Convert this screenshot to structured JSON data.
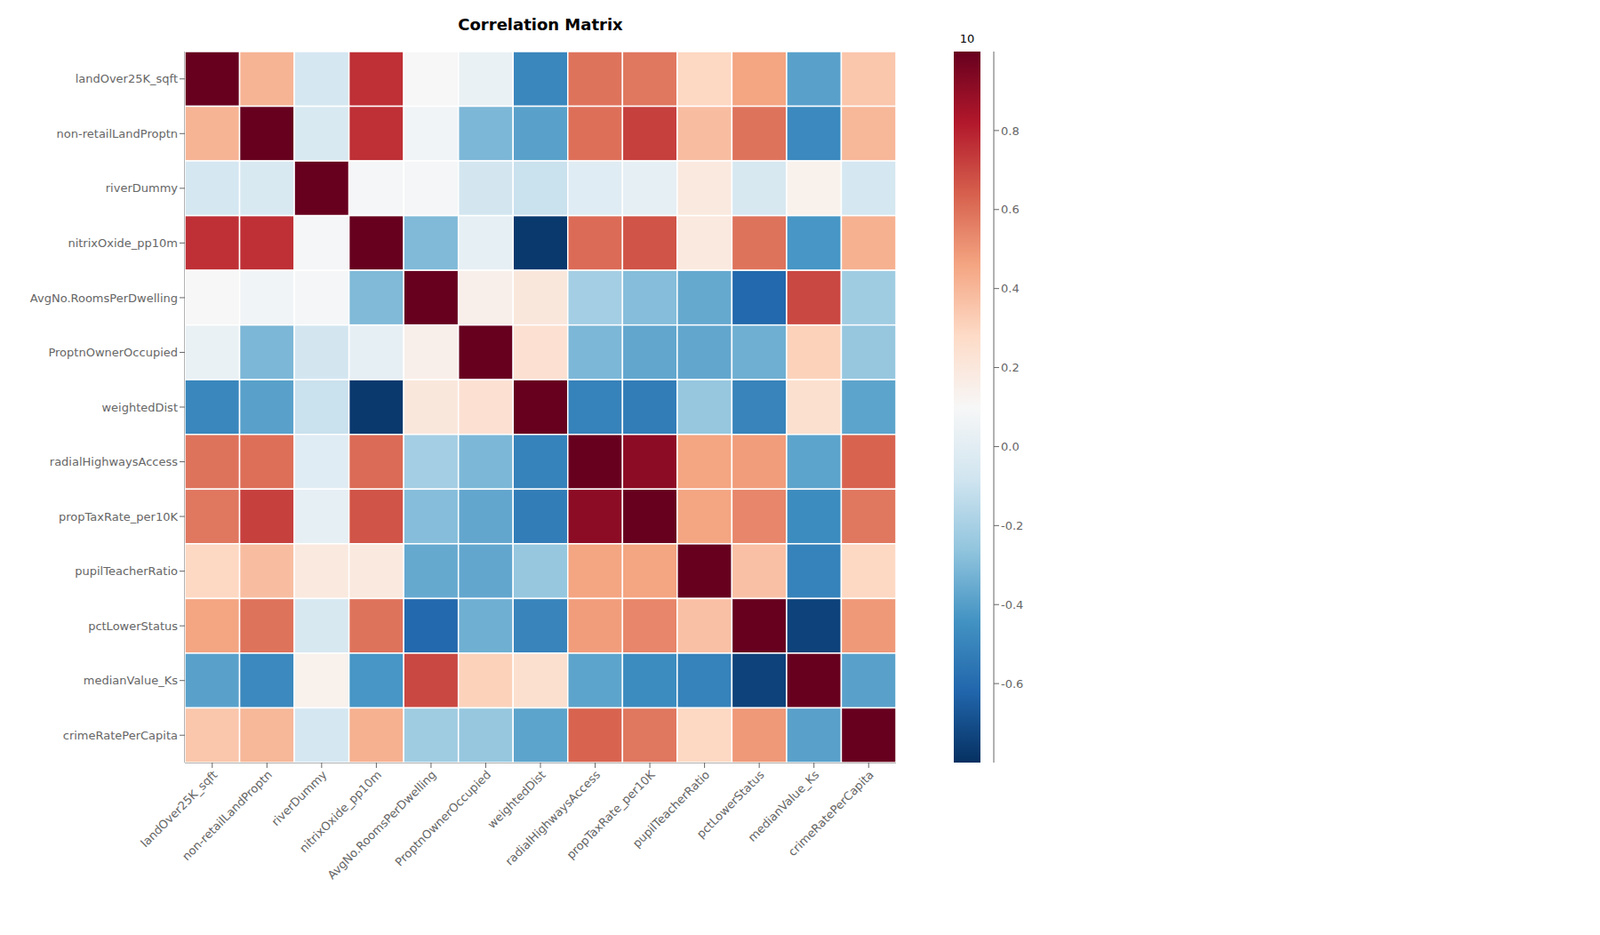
{
  "chart_data": {
    "type": "heatmap",
    "title": "Correlation Matrix",
    "categories": [
      "landOver25K_sqft",
      "non-retailLandProptn",
      "riverDummy",
      "nitrixOxide_pp10m",
      "AvgNo.RoomsPerDwelling",
      "ProptnOwnerOccupied",
      "weightedDist",
      "radialHighwaysAccess",
      "propTaxRate_per10K",
      "pupilTeacherRatio",
      "pctLowerStatus",
      "medianValue_Ks",
      "crimeRatePerCapita"
    ],
    "cells": [
      [
        1.0,
        0.41,
        -0.06,
        0.76,
        0.1,
        0.04,
        -0.49,
        0.59,
        0.58,
        0.29,
        0.46,
        -0.39,
        0.35
      ],
      [
        0.41,
        1.0,
        -0.04,
        0.76,
        0.07,
        -0.31,
        -0.39,
        0.6,
        0.72,
        0.38,
        0.59,
        -0.48,
        0.4
      ],
      [
        -0.06,
        -0.04,
        1.0,
        0.09,
        0.09,
        -0.07,
        -0.1,
        -0.01,
        0.02,
        0.19,
        -0.05,
        0.14,
        -0.06
      ],
      [
        0.76,
        0.76,
        0.09,
        1.0,
        -0.3,
        0.02,
        -0.77,
        0.61,
        0.67,
        0.19,
        0.59,
        -0.43,
        0.42
      ],
      [
        0.1,
        0.07,
        0.09,
        -0.3,
        1.0,
        0.15,
        0.2,
        -0.21,
        -0.29,
        -0.36,
        -0.61,
        0.7,
        -0.22
      ],
      [
        0.04,
        -0.31,
        -0.07,
        0.02,
        0.15,
        1.0,
        0.24,
        -0.31,
        -0.37,
        -0.37,
        -0.34,
        0.31,
        -0.25
      ],
      [
        -0.49,
        -0.39,
        -0.1,
        -0.77,
        0.2,
        0.24,
        1.0,
        -0.51,
        -0.53,
        -0.25,
        -0.5,
        0.25,
        -0.38
      ],
      [
        0.59,
        0.6,
        -0.01,
        0.61,
        -0.21,
        -0.31,
        -0.51,
        1.0,
        0.91,
        0.46,
        0.48,
        -0.38,
        0.63
      ],
      [
        0.58,
        0.72,
        0.02,
        0.67,
        -0.29,
        -0.37,
        -0.53,
        0.91,
        1.0,
        0.46,
        0.54,
        -0.47,
        0.58
      ],
      [
        0.29,
        0.38,
        0.19,
        0.19,
        -0.36,
        -0.37,
        -0.25,
        0.46,
        0.46,
        1.0,
        0.37,
        -0.51,
        0.29
      ],
      [
        0.46,
        0.59,
        -0.05,
        0.59,
        -0.61,
        -0.34,
        -0.5,
        0.48,
        0.54,
        0.37,
        1.0,
        -0.74,
        0.49
      ],
      [
        -0.39,
        -0.48,
        0.14,
        -0.43,
        0.7,
        0.31,
        0.25,
        -0.38,
        -0.47,
        -0.51,
        -0.74,
        1.0,
        -0.39
      ],
      [
        0.35,
        0.4,
        -0.06,
        0.42,
        -0.22,
        -0.25,
        -0.38,
        0.63,
        0.58,
        0.29,
        0.49,
        -0.39,
        1.0
      ]
    ],
    "colorbar_range": [
      -0.8,
      1.0
    ],
    "colorbar_ticks": [
      -0.6,
      -0.4,
      -0.2,
      {
        "value": 0.0,
        "label": "0.0"
      },
      0.2,
      0.4,
      0.6,
      0.8
    ],
    "colorbar_label": "10"
  }
}
